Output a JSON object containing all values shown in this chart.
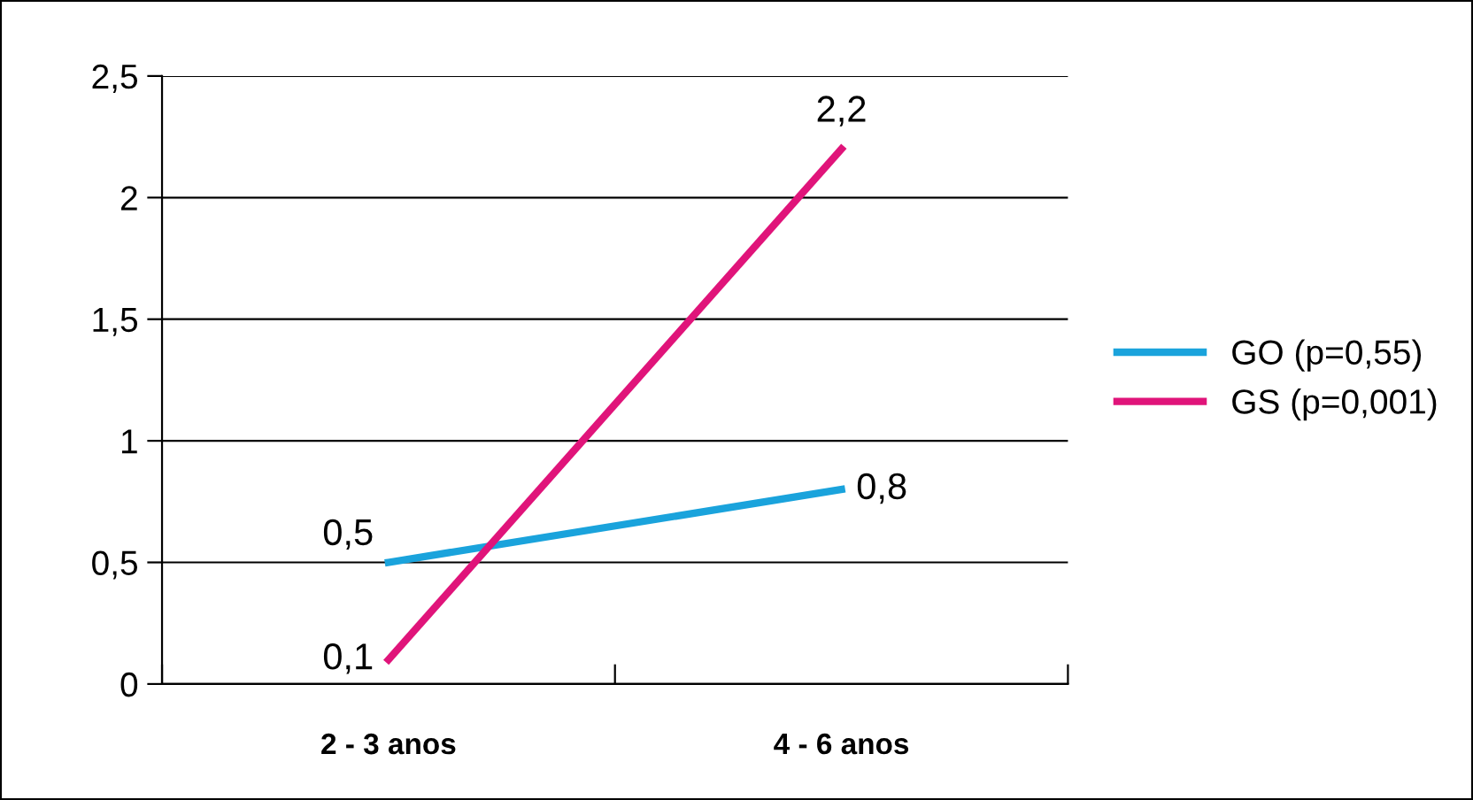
{
  "chart_data": {
    "type": "line",
    "categories": [
      "2 - 3 anos",
      "4 - 6 anos"
    ],
    "series": [
      {
        "name": "GO (p=0,55)",
        "color": "#1aa3dc",
        "values": [
          0.5,
          0.8
        ],
        "value_labels": [
          "0,5",
          "0,8"
        ]
      },
      {
        "name": "GS (p=0,001)",
        "color": "#e0147a",
        "values": [
          0.1,
          2.2
        ],
        "value_labels": [
          "0,1",
          "2,2"
        ]
      }
    ],
    "ylim": [
      0,
      2.5
    ],
    "yticks": [
      0,
      {
        "value": 0.5,
        "label": "0,5"
      },
      1,
      {
        "value": 1.5,
        "label": "1,5"
      },
      2,
      {
        "value": 2.5,
        "label": "2,5"
      }
    ],
    "grid": "y",
    "legend": "right",
    "marker": "none",
    "line_style": "solid"
  }
}
